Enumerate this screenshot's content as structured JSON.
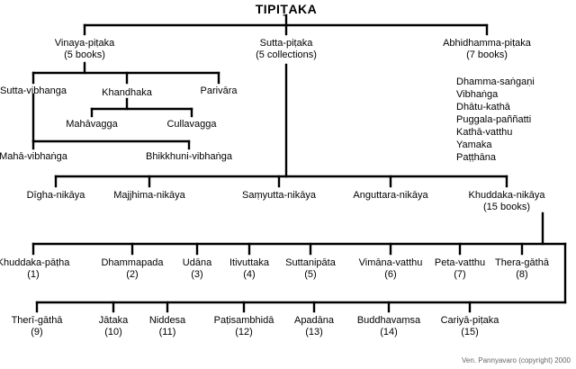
{
  "title": "TIPIṬAKA",
  "vinaya": {
    "name": "Vinaya-piṭaka",
    "count": "(5 books)",
    "sutta_vibhanga": "Sutta-vibhanga",
    "khandhaka": "Khandhaka",
    "parivara": "Parivāra",
    "mahavagga": "Mahāvagga",
    "cullavagga": "Cullavagga",
    "maha_vibhanga": "Mahā-vibhaṅga",
    "bhikkhuni_vibhanga": "Bhikkhuni-vibhaṅga"
  },
  "sutta": {
    "name": "Sutta-piṭaka",
    "count": "(5 collections)"
  },
  "abhidhamma": {
    "name": "Abhidhamma-piṭaka",
    "count": "(7 books)",
    "books": [
      "Dhamma-saṅgaṇi",
      "Vibhaṅga",
      "Dhātu-kathā",
      "Puggala-paññatti",
      "Kathā-vatthu",
      "Yamaka",
      "Paṭṭhāna"
    ]
  },
  "nikayas": [
    "Dīgha-nikāya",
    "Majjhima-nikāya",
    "Saṃyutta-nikāya",
    "Anguttara-nikāya",
    "Khuddaka-nikāya"
  ],
  "khuddaka_count": "(15 books)",
  "khuddaka_row1": [
    {
      "name": "Khuddaka-pāṭha",
      "num": "(1)"
    },
    {
      "name": "Dhammapada",
      "num": "(2)"
    },
    {
      "name": "Udāna",
      "num": "(3)"
    },
    {
      "name": "Itivuttaka",
      "num": "(4)"
    },
    {
      "name": "Suttanipāta",
      "num": "(5)"
    },
    {
      "name": "Vimāna-vatthu",
      "num": "(6)"
    },
    {
      "name": "Peta-vatthu",
      "num": "(7)"
    },
    {
      "name": "Thera-gāthā",
      "num": "(8)"
    }
  ],
  "khuddaka_row2": [
    {
      "name": "Therī-gāthā",
      "num": "(9)"
    },
    {
      "name": "Jātaka",
      "num": "(10)"
    },
    {
      "name": "Niddesa",
      "num": "(11)"
    },
    {
      "name": "Paṭisambhidā",
      "num": "(12)"
    },
    {
      "name": "Apadāna",
      "num": "(13)"
    },
    {
      "name": "Buddhavaṃsa",
      "num": "(14)"
    },
    {
      "name": "Cariyā-piṭaka",
      "num": "(15)"
    }
  ],
  "credit": "Ven. Pannyavaro (copyright) 2000"
}
